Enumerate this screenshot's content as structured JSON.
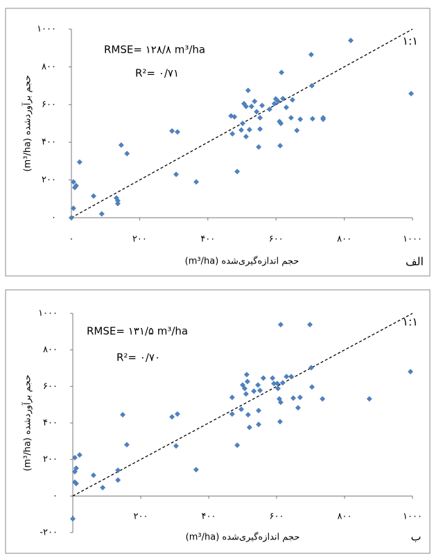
{
  "chart_data": [
    {
      "type": "scatter",
      "color": "#4f81bd",
      "x_label": "حجم اندازه‌گیری‌شده (m³/ha)",
      "y_label": "حجم برآورد‌شده (m³/ha)",
      "annotations": [
        "RMSE= ۱۲۸/۸ m³/ha",
        "R²= ۰/۷۱",
        "۱:۱"
      ],
      "panel_label": "الف",
      "xlim": [
        0,
        1000
      ],
      "ylim": [
        0,
        1000
      ],
      "xticks": [
        {
          "value": 0,
          "label": "۰"
        },
        {
          "value": 200,
          "label": "۲۰۰"
        },
        {
          "value": 400,
          "label": "۴۰۰"
        },
        {
          "value": 600,
          "label": "۶۰۰"
        },
        {
          "value": 800,
          "label": "۸۰۰"
        },
        {
          "value": 1000,
          "label": "۱۰۰۰"
        }
      ],
      "yticks": [
        {
          "value": 0,
          "label": "۰"
        },
        {
          "value": 200,
          "label": "۲۰۰"
        },
        {
          "value": 400,
          "label": "۴۰۰"
        },
        {
          "value": 600,
          "label": "۶۰۰"
        },
        {
          "value": 800,
          "label": "۸۰۰"
        },
        {
          "value": 1000,
          "label": "۱۰۰۰"
        }
      ],
      "x": [
        0,
        6,
        6,
        10,
        14,
        24,
        65,
        89,
        132,
        136,
        136,
        146,
        163,
        295,
        311,
        307,
        366,
        472,
        498,
        468,
        478,
        486,
        502,
        506,
        512,
        518,
        512,
        522,
        528,
        537,
        543,
        549,
        553,
        553,
        559,
        581,
        595,
        599,
        606,
        610,
        614,
        612,
        616,
        620,
        630,
        644,
        648,
        661,
        671,
        703,
        705,
        707,
        738,
        738,
        819,
        996
      ],
      "values": [
        0,
        50,
        190,
        160,
        170,
        295,
        115,
        20,
        105,
        90,
        75,
        385,
        340,
        460,
        455,
        230,
        190,
        445,
        465,
        540,
        535,
        245,
        500,
        605,
        590,
        675,
        430,
        467,
        590,
        617,
        562,
        375,
        470,
        530,
        595,
        575,
        605,
        630,
        617,
        510,
        500,
        382,
        770,
        632,
        585,
        530,
        625,
        463,
        522,
        865,
        700,
        525,
        522,
        530,
        940,
        658
      ]
    },
    {
      "type": "scatter",
      "color": "#4f81bd",
      "x_label": "حجم اندازه‌گیری‌شده (m³/ha)",
      "y_label": "حجم برآورد‌شده (m³/ha)",
      "annotations": [
        "RMSE= ۱۳۱/۵ m³/ha",
        "R²= ۰/۷۰",
        "۱:۱"
      ],
      "panel_label": "ب",
      "xlim": [
        0,
        1000
      ],
      "ylim": [
        -200,
        1000
      ],
      "xticks": [
        {
          "value": 0,
          "label": "۰"
        },
        {
          "value": 200,
          "label": "۲۰۰"
        },
        {
          "value": 400,
          "label": "۴۰۰"
        },
        {
          "value": 600,
          "label": "۶۰۰"
        },
        {
          "value": 800,
          "label": "۸۰۰"
        },
        {
          "value": 1000,
          "label": "۱۰۰۰"
        }
      ],
      "yticks": [
        {
          "value": -200,
          "label": "-۲۰۰"
        },
        {
          "value": 0,
          "label": "۰"
        },
        {
          "value": 200,
          "label": "۲۰۰"
        },
        {
          "value": 400,
          "label": "۴۰۰"
        },
        {
          "value": 600,
          "label": "۶۰۰"
        },
        {
          "value": 800,
          "label": "۸۰۰"
        },
        {
          "value": 1000,
          "label": "۱۰۰۰"
        }
      ],
      "x": [
        0,
        6,
        20,
        6,
        10,
        6,
        10,
        61,
        88,
        133,
        133,
        147,
        159,
        292,
        308,
        304,
        363,
        469,
        484,
        496,
        469,
        500,
        506,
        512,
        514,
        516,
        520,
        510,
        533,
        545,
        547,
        547,
        551,
        561,
        588,
        592,
        602,
        604,
        608,
        612,
        610,
        612,
        618,
        629,
        643,
        649,
        663,
        669,
        698,
        702,
        704,
        735,
        873,
        994
      ],
      "values": [
        -125,
        210,
        225,
        133,
        152,
        76,
        68,
        114,
        46,
        87,
        141,
        445,
        281,
        433,
        449,
        274,
        144,
        449,
        278,
        475,
        540,
        608,
        589,
        665,
        627,
        445,
        376,
        559,
        574,
        608,
        468,
        392,
        578,
        646,
        646,
        616,
        616,
        589,
        532,
        513,
        407,
        939,
        620,
        654,
        654,
        536,
        483,
        540,
        939,
        703,
        597,
        532,
        532,
        681
      ]
    }
  ]
}
